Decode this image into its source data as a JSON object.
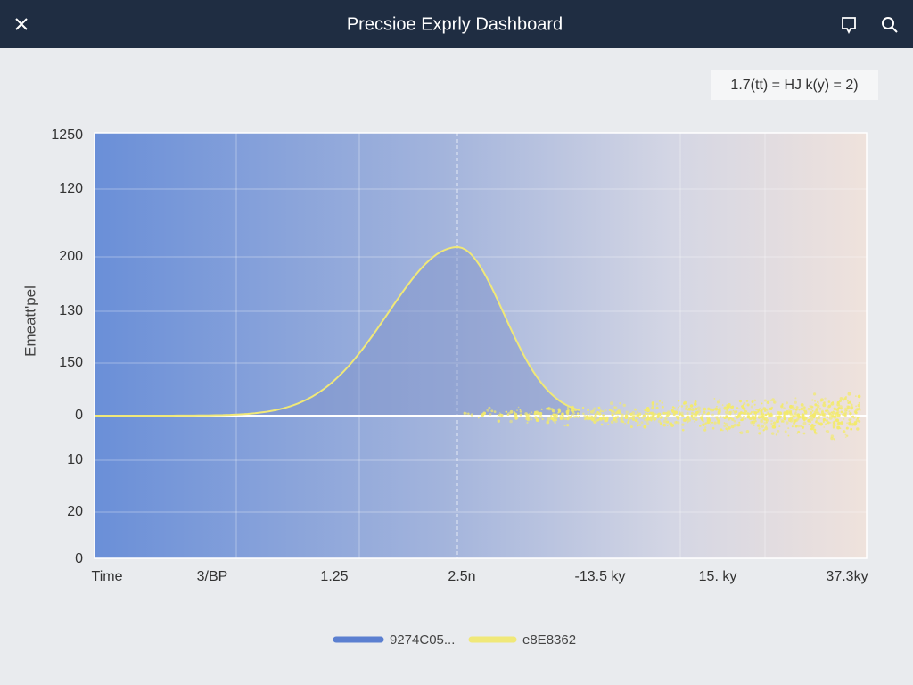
{
  "header": {
    "title": "Precsioe Exprly Dashboard"
  },
  "formula": "1.7(tt) = HJ k(y) = 2)",
  "chart": {
    "y_title": "Emeatt'pel",
    "y_labels": [
      "1250",
      "120",
      "200",
      "130",
      "150",
      "0",
      "10",
      "20",
      "0"
    ],
    "x_labels": [
      "Time",
      "3/BP",
      "1.25",
      "2.5n",
      "-13.5 ky",
      "15. ky",
      "37.3ky"
    ],
    "legend": [
      "9274C05...",
      "e8E8362"
    ]
  }
}
